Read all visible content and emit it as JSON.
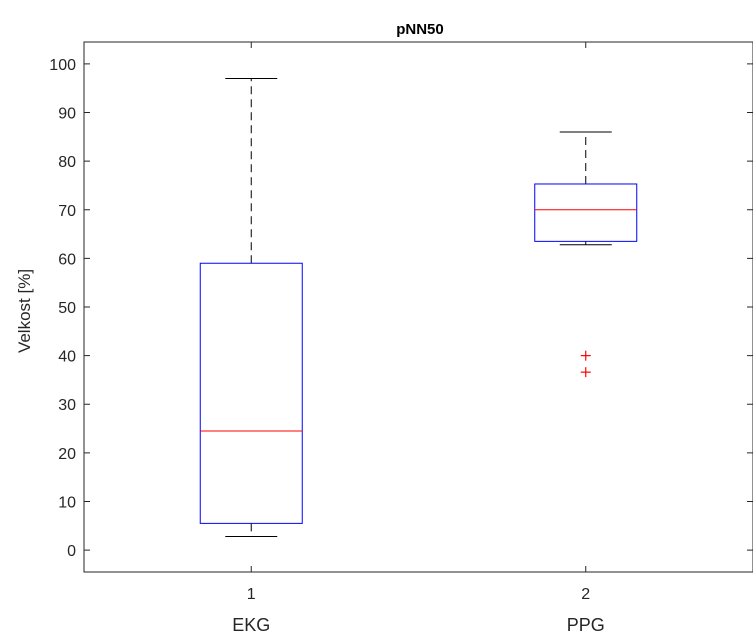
{
  "chart_data": {
    "type": "boxplot",
    "title": "pNN50",
    "xlabel": "",
    "ylabel": "Velkost [%]",
    "ylim": [
      -4.5,
      104.5
    ],
    "yticks": [
      0,
      10,
      20,
      30,
      40,
      50,
      60,
      70,
      80,
      90,
      100
    ],
    "grid": false,
    "groups": [
      {
        "tick": "1",
        "label": "EKG",
        "whisker_low": 2.8,
        "q1": 5.5,
        "median": 24.5,
        "q3": 59.0,
        "whisker_high": 97.0,
        "outliers": []
      },
      {
        "tick": "2",
        "label": "PPG",
        "whisker_low": 62.8,
        "q1": 63.5,
        "median": 70.0,
        "q3": 75.3,
        "whisker_high": 86.0,
        "outliers": [
          40.0,
          36.6
        ]
      }
    ],
    "colors": {
      "box": "#0000ff",
      "median": "#ff0000",
      "whisker": "#000000",
      "outlier": "#ff0000",
      "axis": "#262626"
    }
  }
}
